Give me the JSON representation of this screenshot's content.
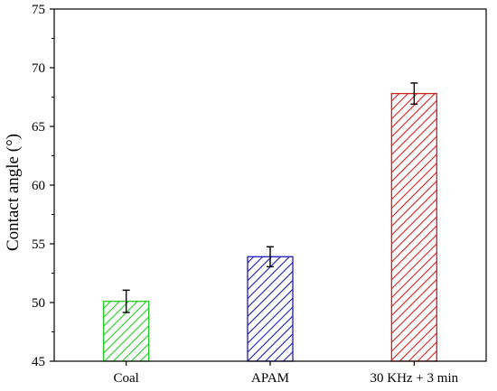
{
  "chart_data": {
    "type": "bar",
    "categories": [
      "Coal",
      "APAM",
      "30 KHz + 3 min"
    ],
    "values": [
      50.1,
      53.9,
      67.8
    ],
    "errors": [
      0.95,
      0.85,
      0.9
    ],
    "colors": [
      "#22cc22",
      "#1a1ab8",
      "#d42020"
    ],
    "fill_pattern": "diagonal-hatch",
    "title": "",
    "xlabel": "",
    "ylabel": "Contact angle (°)",
    "ylim": [
      45,
      75
    ],
    "yticks": [
      45,
      50,
      55,
      60,
      65,
      70,
      75
    ],
    "grid": false
  }
}
